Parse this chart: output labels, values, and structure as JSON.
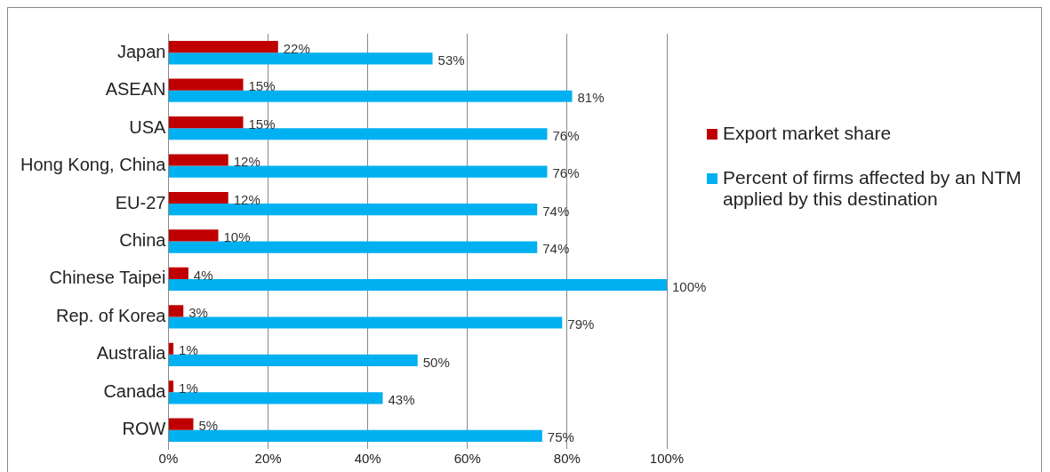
{
  "chart_data": {
    "type": "bar",
    "orientation": "horizontal",
    "categories": [
      "Japan",
      "ASEAN",
      "USA",
      "Hong Kong, China",
      "EU-27",
      "China",
      "Chinese Taipei",
      "Rep. of Korea",
      "Australia",
      "Canada",
      "ROW"
    ],
    "series": [
      {
        "name": "Export market share",
        "color": "#c00000",
        "values": [
          22,
          15,
          15,
          12,
          12,
          10,
          4,
          3,
          1,
          1,
          5
        ],
        "value_labels": [
          "22%",
          "15%",
          "15%",
          "12%",
          "12%",
          "10%",
          "4%",
          "3%",
          "1%",
          "1%",
          "5%"
        ]
      },
      {
        "name": "Percent of firms affected by an NTM applied by this destination",
        "color": "#00b0f0",
        "values": [
          53,
          81,
          76,
          76,
          74,
          74,
          100,
          79,
          50,
          43,
          75
        ],
        "value_labels": [
          "53%",
          "81%",
          "76%",
          "76%",
          "74%",
          "74%",
          "100%",
          "79%",
          "50%",
          "43%",
          "75%"
        ]
      }
    ],
    "xlim": [
      0,
      100
    ],
    "xticks": [
      {
        "value": 0,
        "label": "0%"
      },
      {
        "value": 20,
        "label": "20%"
      },
      {
        "value": 40,
        "label": "40%"
      },
      {
        "value": 60,
        "label": "60%"
      },
      {
        "value": 80,
        "label": "80%"
      },
      {
        "value": 100,
        "label": "100%"
      }
    ],
    "grid": "x",
    "legend": "right"
  }
}
